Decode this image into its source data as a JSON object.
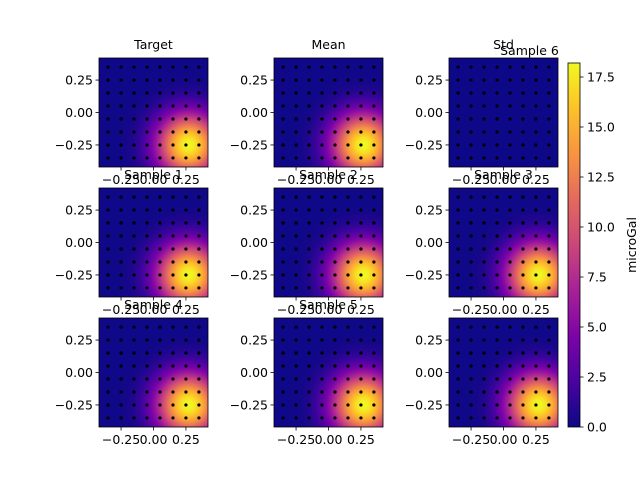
{
  "chart_data": {
    "type": "heatmap",
    "colormap": "plasma",
    "layout": "3x3 grid",
    "colorbar": {
      "label": "microGal",
      "range": [
        0.0,
        18.2
      ],
      "ticks": [
        0.0,
        2.5,
        5.0,
        7.5,
        10.0,
        12.5,
        15.0,
        17.5
      ],
      "tick_labels": [
        "0.0",
        "2.5",
        "5.0",
        "7.5",
        "10.0",
        "12.5",
        "15.0",
        "17.5"
      ]
    },
    "axes": {
      "xlim": [
        -0.42,
        0.42
      ],
      "ylim": [
        -0.42,
        0.42
      ],
      "x_ticks": [
        -0.25,
        0.0,
        0.25
      ],
      "x_tick_labels": [
        "−0.25",
        "0.00",
        "0.25"
      ],
      "y_ticks": [
        0.25,
        0.0,
        -0.25
      ],
      "y_tick_labels": [
        "0.25",
        "0.00",
        "−0.25"
      ]
    },
    "field": {
      "description": "gravity anomaly peaking near lower-right",
      "peak_x": 0.27,
      "peak_y": -0.25,
      "peak_value": 18.2,
      "falloff_scale": 0.22
    },
    "station_grid": {
      "x": [
        -0.35,
        -0.25,
        -0.15,
        -0.05,
        0.05,
        0.15,
        0.25,
        0.35
      ],
      "y": [
        0.35,
        0.25,
        0.15,
        0.05,
        -0.05,
        -0.15,
        -0.25,
        -0.35
      ],
      "marker": "black dot"
    },
    "panels": [
      {
        "title": "Target",
        "kind": "field"
      },
      {
        "title": "Mean",
        "kind": "field"
      },
      {
        "title": "Std",
        "kind": "std",
        "overlay_title": "Sample 6",
        "value": 0.0
      },
      {
        "title": "Sample 1",
        "kind": "field"
      },
      {
        "title": "Sample 2",
        "kind": "field"
      },
      {
        "title": "Sample 3",
        "kind": "field"
      },
      {
        "title": "Sample 4",
        "kind": "field"
      },
      {
        "title": "Sample 5",
        "kind": "field"
      },
      {
        "title": "",
        "kind": "field"
      }
    ]
  }
}
